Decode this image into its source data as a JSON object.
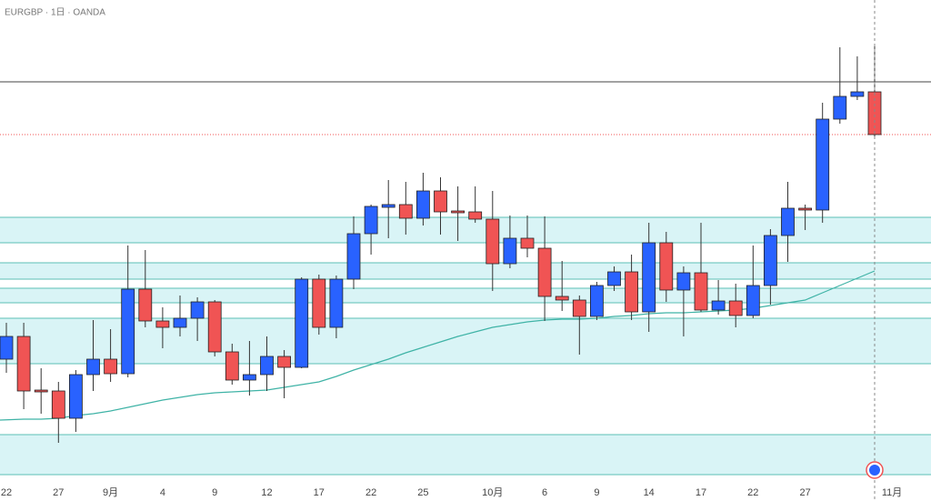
{
  "chart_data": {
    "type": "candlestick",
    "title": "EURGBP · 1日 · OANDA",
    "up_color": "#2962ff",
    "down_color": "#f05454",
    "open": [
      0.83475,
      0.836,
      0.83305,
      0.833,
      0.8315,
      0.8339,
      0.83475,
      0.83395,
      0.8386,
      0.83685,
      0.8365,
      0.837,
      0.8379,
      0.83515,
      0.8336,
      0.8339,
      0.8349,
      0.8343,
      0.83915,
      0.8365,
      0.83915,
      0.84165,
      0.8431,
      0.84325,
      0.8425,
      0.844,
      0.8429,
      0.84285,
      0.84245,
      0.84,
      0.8414,
      0.84085,
      0.8382,
      0.838,
      0.8371,
      0.8388,
      0.83955,
      0.83735,
      0.84115,
      0.83855,
      0.8395,
      0.83745,
      0.83795,
      0.83715,
      0.8388,
      0.84155,
      0.84305,
      0.84295,
      0.84795,
      0.8492,
      0.84945
    ],
    "high": [
      0.83675,
      0.83675,
      0.83425,
      0.8335,
      0.83415,
      0.8369,
      0.8364,
      0.841,
      0.84075,
      0.8376,
      0.83825,
      0.83815,
      0.838,
      0.8356,
      0.83575,
      0.836,
      0.83525,
      0.83925,
      0.8394,
      0.83935,
      0.8426,
      0.84325,
      0.8446,
      0.8445,
      0.845,
      0.84475,
      0.84425,
      0.84425,
      0.844,
      0.84265,
      0.84265,
      0.8426,
      0.84015,
      0.83825,
      0.839,
      0.83985,
      0.8405,
      0.84225,
      0.84175,
      0.83985,
      0.84225,
      0.8391,
      0.8389,
      0.841,
      0.8419,
      0.8445,
      0.84325,
      0.84885,
      0.8519,
      0.8514,
      0.852
    ],
    "low": [
      0.834,
      0.832,
      0.83175,
      0.83015,
      0.83075,
      0.833,
      0.8335,
      0.83375,
      0.8365,
      0.83535,
      0.836,
      0.83575,
      0.8349,
      0.83335,
      0.83275,
      0.833,
      0.8326,
      0.83425,
      0.8361,
      0.8359,
      0.8386,
      0.8405,
      0.8414,
      0.8416,
      0.8421,
      0.8416,
      0.84125,
      0.84225,
      0.8385,
      0.83975,
      0.84035,
      0.83685,
      0.8374,
      0.835,
      0.8369,
      0.8385,
      0.8369,
      0.83625,
      0.8379,
      0.836,
      0.83735,
      0.8372,
      0.8365,
      0.837,
      0.83775,
      0.8401,
      0.84185,
      0.84225,
      0.8477,
      0.849,
      0.847
    ],
    "close": [
      0.836,
      0.833,
      0.83295,
      0.8315,
      0.8339,
      0.83475,
      0.83395,
      0.8386,
      0.83685,
      0.8365,
      0.837,
      0.8379,
      0.83515,
      0.8336,
      0.8339,
      0.8349,
      0.8343,
      0.83915,
      0.8365,
      0.83915,
      0.84165,
      0.84315,
      0.84325,
      0.8425,
      0.844,
      0.84285,
      0.8428,
      0.84245,
      0.84,
      0.8414,
      0.84085,
      0.8382,
      0.838,
      0.8371,
      0.8388,
      0.83955,
      0.83735,
      0.84115,
      0.83855,
      0.8395,
      0.83745,
      0.83795,
      0.83715,
      0.8388,
      0.84155,
      0.84305,
      0.84295,
      0.84795,
      0.8492,
      0.84945,
      0.8471
    ],
    "ma": {
      "color": "#3fb3a6",
      "values": [
        0.8314,
        0.83145,
        0.83145,
        0.8315,
        0.83165,
        0.83175,
        0.8319,
        0.8321,
        0.8323,
        0.8325,
        0.83265,
        0.8328,
        0.8329,
        0.83295,
        0.833,
        0.83305,
        0.8332,
        0.83335,
        0.8335,
        0.8338,
        0.83415,
        0.83445,
        0.83475,
        0.8351,
        0.8354,
        0.8357,
        0.836,
        0.83625,
        0.8365,
        0.83665,
        0.8368,
        0.8369,
        0.83695,
        0.83695,
        0.837,
        0.8371,
        0.83715,
        0.83725,
        0.8373,
        0.8373,
        0.83735,
        0.8374,
        0.83745,
        0.83755,
        0.8377,
        0.83785,
        0.838,
        0.8384,
        0.8388,
        0.8392,
        0.8396
      ]
    },
    "zones": [
      [
        0.84255,
        0.84115
      ],
      [
        0.84005,
        0.83915
      ],
      [
        0.83865,
        0.83785
      ],
      [
        0.837,
        0.8345
      ],
      [
        0.8306,
        0.8284
      ]
    ],
    "zone_color": "#d9f4f6",
    "zone_border": "#5cbfb5",
    "hlines": [
      0.85
    ],
    "last_price": 0.8471,
    "ylim": [
      0.82695,
      0.8545
    ],
    "xticks": [
      {
        "value": 0,
        "label": "22"
      },
      {
        "value": 3,
        "label": "27"
      },
      {
        "value": 6,
        "label": "9月"
      },
      {
        "value": 9,
        "label": "4"
      },
      {
        "value": 12,
        "label": "9"
      },
      {
        "value": 15,
        "label": "12"
      },
      {
        "value": 18,
        "label": "17"
      },
      {
        "value": 21,
        "label": "22"
      },
      {
        "value": 24,
        "label": "25"
      },
      {
        "value": 28,
        "label": "10月"
      },
      {
        "value": 31,
        "label": "6"
      },
      {
        "value": 34,
        "label": "9"
      },
      {
        "value": 37,
        "label": "14"
      },
      {
        "value": 40,
        "label": "17"
      },
      {
        "value": 43,
        "label": "22"
      },
      {
        "value": 46,
        "label": "27"
      },
      {
        "value": 51,
        "label": "11月"
      }
    ]
  }
}
